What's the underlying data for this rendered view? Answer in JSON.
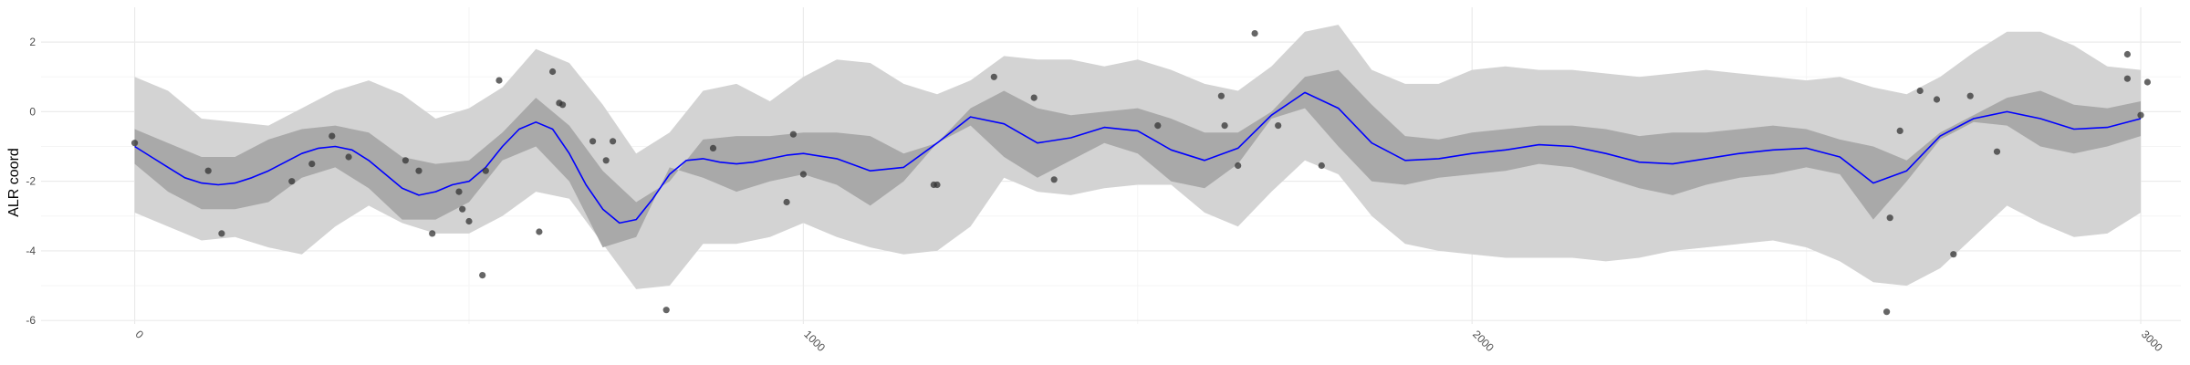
{
  "chart_data": {
    "type": "line",
    "title": "",
    "xlabel": "",
    "ylabel": "ALR coord",
    "xlim": [
      -140,
      3060
    ],
    "ylim": [
      -6.1,
      3.0
    ],
    "grid": true,
    "legend": "none",
    "x_ticks": [
      0,
      1000,
      2000,
      3000
    ],
    "x_tick_labels": [
      "0",
      "1000",
      "2000",
      "3000"
    ],
    "x_tick_label_rotation": -45,
    "y_ticks": [
      -6,
      -4,
      -2,
      0,
      2
    ],
    "y_tick_labels": [
      "-6",
      "-4",
      "-2",
      "0",
      "2"
    ],
    "colors": {
      "outer_band": "#d3d3d3",
      "inner_band": "#a9a9a9",
      "mean_line": "#0000ff",
      "points": "#333333",
      "grid_major": "#ebebeb",
      "grid_minor": "#f5f5f5"
    },
    "series": [
      {
        "kind": "band_outer",
        "x": [
          0,
          50,
          100,
          150,
          200,
          250,
          300,
          350,
          400,
          450,
          500,
          550,
          600,
          650,
          700,
          750,
          800,
          850,
          900,
          950,
          1000,
          1050,
          1100,
          1150,
          1200,
          1250,
          1300,
          1350,
          1400,
          1450,
          1500,
          1550,
          1600,
          1650,
          1700,
          1750,
          1800,
          1850,
          1900,
          1950,
          2000,
          2050,
          2100,
          2150,
          2200,
          2250,
          2300,
          2350,
          2400,
          2450,
          2500,
          2550,
          2600,
          2650,
          2700,
          2750,
          2800,
          2850,
          2900,
          2950,
          3000
        ],
        "upper": [
          1.0,
          0.6,
          -0.2,
          -0.3,
          -0.4,
          0.1,
          0.6,
          0.9,
          0.5,
          -0.2,
          0.1,
          0.7,
          1.8,
          1.4,
          0.2,
          -1.2,
          -0.6,
          0.6,
          0.8,
          0.3,
          1.0,
          1.5,
          1.4,
          0.8,
          0.5,
          0.9,
          1.6,
          1.5,
          1.5,
          1.3,
          1.5,
          1.2,
          0.8,
          0.6,
          1.3,
          2.3,
          2.5,
          1.2,
          0.8,
          0.8,
          1.2,
          1.3,
          1.2,
          1.2,
          1.1,
          1.0,
          1.1,
          1.2,
          1.1,
          1.0,
          0.9,
          1.0,
          0.7,
          0.5,
          1.0,
          1.7,
          2.3,
          2.3,
          1.9,
          1.3,
          1.2
        ],
        "lower": [
          -2.9,
          -3.3,
          -3.7,
          -3.6,
          -3.9,
          -4.1,
          -3.3,
          -2.7,
          -3.2,
          -3.5,
          -3.5,
          -3.0,
          -2.3,
          -2.5,
          -3.8,
          -5.1,
          -5.0,
          -3.8,
          -3.8,
          -3.6,
          -3.2,
          -3.6,
          -3.9,
          -4.1,
          -4.0,
          -3.3,
          -1.9,
          -2.3,
          -2.4,
          -2.2,
          -2.1,
          -2.1,
          -2.9,
          -3.3,
          -2.3,
          -1.4,
          -1.8,
          -3.0,
          -3.8,
          -4.0,
          -4.1,
          -4.2,
          -4.2,
          -4.2,
          -4.3,
          -4.2,
          -4.0,
          -3.9,
          -3.8,
          -3.7,
          -3.9,
          -4.3,
          -4.9,
          -5.0,
          -4.5,
          -3.6,
          -2.7,
          -3.2,
          -3.6,
          -3.5,
          -2.9
        ]
      },
      {
        "kind": "band_inner",
        "x": [
          0,
          50,
          100,
          150,
          200,
          250,
          300,
          350,
          400,
          450,
          500,
          550,
          600,
          650,
          700,
          750,
          800,
          850,
          900,
          950,
          1000,
          1050,
          1100,
          1150,
          1200,
          1250,
          1300,
          1350,
          1400,
          1450,
          1500,
          1550,
          1600,
          1650,
          1700,
          1750,
          1800,
          1850,
          1900,
          1950,
          2000,
          2050,
          2100,
          2150,
          2200,
          2250,
          2300,
          2350,
          2400,
          2450,
          2500,
          2550,
          2600,
          2650,
          2700,
          2750,
          2800,
          2850,
          2900,
          2950,
          3000
        ],
        "upper": [
          -0.5,
          -0.9,
          -1.3,
          -1.3,
          -0.8,
          -0.5,
          -0.4,
          -0.6,
          -1.3,
          -1.5,
          -1.4,
          -0.6,
          0.4,
          -0.4,
          -1.7,
          -2.6,
          -2.0,
          -0.8,
          -0.7,
          -0.7,
          -0.6,
          -0.6,
          -0.7,
          -1.2,
          -0.9,
          0.1,
          0.6,
          0.1,
          -0.1,
          0.0,
          0.1,
          -0.2,
          -0.6,
          -0.6,
          0.0,
          1.0,
          1.2,
          0.2,
          -0.7,
          -0.8,
          -0.6,
          -0.5,
          -0.4,
          -0.4,
          -0.5,
          -0.7,
          -0.6,
          -0.6,
          -0.5,
          -0.4,
          -0.5,
          -0.8,
          -1.0,
          -1.4,
          -0.6,
          -0.1,
          0.4,
          0.6,
          0.2,
          0.1,
          0.3
        ]
      },
      {
        "kind": "mean",
        "name": "",
        "x": [
          0,
          25,
          50,
          75,
          100,
          125,
          150,
          175,
          200,
          225,
          250,
          275,
          300,
          325,
          350,
          375,
          400,
          425,
          450,
          475,
          500,
          525,
          550,
          575,
          600,
          625,
          650,
          675,
          700,
          725,
          750,
          775,
          800,
          825,
          850,
          875,
          900,
          925,
          950,
          975,
          1000,
          1050,
          1100,
          1150,
          1200,
          1250,
          1300,
          1350,
          1400,
          1450,
          1500,
          1550,
          1600,
          1650,
          1700,
          1750,
          1800,
          1850,
          1900,
          1950,
          2000,
          2050,
          2100,
          2150,
          2200,
          2250,
          2300,
          2350,
          2400,
          2450,
          2500,
          2550,
          2600,
          2650,
          2700,
          2750,
          2800,
          2850,
          2900,
          2950,
          3000
        ],
        "y": [
          -1.0,
          -1.3,
          -1.6,
          -1.9,
          -2.05,
          -2.1,
          -2.05,
          -1.9,
          -1.7,
          -1.45,
          -1.2,
          -1.05,
          -1.0,
          -1.1,
          -1.4,
          -1.8,
          -2.2,
          -2.4,
          -2.3,
          -2.1,
          -2.0,
          -1.6,
          -1.0,
          -0.5,
          -0.3,
          -0.5,
          -1.2,
          -2.1,
          -2.8,
          -3.2,
          -3.1,
          -2.5,
          -1.8,
          -1.4,
          -1.35,
          -1.45,
          -1.5,
          -1.45,
          -1.35,
          -1.25,
          -1.2,
          -1.35,
          -1.7,
          -1.6,
          -0.9,
          -0.15,
          -0.35,
          -0.9,
          -0.75,
          -0.45,
          -0.55,
          -1.1,
          -1.4,
          -1.05,
          -0.1,
          0.55,
          0.1,
          -0.9,
          -1.4,
          -1.35,
          -1.2,
          -1.1,
          -0.95,
          -1.0,
          -1.2,
          -1.45,
          -1.5,
          -1.35,
          -1.2,
          -1.1,
          -1.05,
          -1.3,
          -2.05,
          -1.7,
          -0.7,
          -0.2,
          0.0,
          -0.2,
          -0.5,
          -0.45,
          -0.2
        ]
      },
      {
        "kind": "points",
        "name": "",
        "x": [
          0,
          110,
          130,
          235,
          265,
          295,
          320,
          405,
          425,
          445,
          485,
          490,
          500,
          520,
          525,
          545,
          605,
          625,
          635,
          640,
          685,
          705,
          715,
          795,
          865,
          975,
          985,
          1000,
          1195,
          1285,
          1345,
          1375,
          1625,
          1630,
          1650,
          1675,
          1710,
          1775,
          2620,
          2625,
          2640,
          2670,
          2695,
          2720,
          2745,
          2785,
          2980,
          3000,
          2980,
          3010,
          1200,
          1530
        ],
        "y": [
          -0.9,
          -1.7,
          -3.5,
          -2.0,
          -1.5,
          -0.7,
          -1.3,
          -1.4,
          -1.7,
          -3.5,
          -2.3,
          -2.8,
          -3.15,
          -4.7,
          -1.7,
          0.9,
          -3.45,
          1.15,
          0.25,
          0.2,
          -0.85,
          -1.4,
          -0.85,
          -5.7,
          -1.05,
          -2.6,
          -0.65,
          -1.8,
          -2.1,
          1.0,
          0.4,
          -1.95,
          0.45,
          -0.4,
          -1.55,
          2.25,
          -0.4,
          -1.55,
          -5.75,
          -3.05,
          -0.55,
          0.6,
          0.35,
          -4.1,
          0.45,
          -1.15,
          1.65,
          -0.1,
          0.95,
          0.85,
          -2.1,
          -0.4
        ]
      }
    ]
  }
}
